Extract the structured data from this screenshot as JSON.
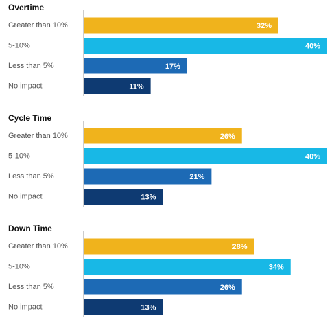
{
  "chart_data": [
    {
      "type": "bar",
      "orientation": "horizontal",
      "title": "Overtime",
      "categories": [
        "Greater than 10%",
        "5-10%",
        "Less than 5%",
        "No impact"
      ],
      "values": [
        32,
        40,
        17,
        11
      ],
      "value_labels": [
        "32%",
        "40%",
        "17%",
        "11%"
      ],
      "colors": [
        "#f0b31c",
        "#18b8e6",
        "#1d6ab5",
        "#0e3a72"
      ],
      "xlim": [
        0,
        40
      ]
    },
    {
      "type": "bar",
      "orientation": "horizontal",
      "title": "Cycle Time",
      "categories": [
        "Greater than 10%",
        "5-10%",
        "Less than 5%",
        "No impact"
      ],
      "values": [
        26,
        40,
        21,
        13
      ],
      "value_labels": [
        "26%",
        "40%",
        "21%",
        "13%"
      ],
      "colors": [
        "#f0b31c",
        "#18b8e6",
        "#1d6ab5",
        "#0e3a72"
      ],
      "xlim": [
        0,
        40
      ]
    },
    {
      "type": "bar",
      "orientation": "horizontal",
      "title": "Down Time",
      "categories": [
        "Greater than 10%",
        "5-10%",
        "Less than 5%",
        "No impact"
      ],
      "values": [
        28,
        34,
        26,
        13
      ],
      "value_labels": [
        "28%",
        "34%",
        "26%",
        "13%"
      ],
      "colors": [
        "#f0b31c",
        "#18b8e6",
        "#1d6ab5",
        "#0e3a72"
      ],
      "xlim": [
        0,
        40
      ]
    }
  ]
}
